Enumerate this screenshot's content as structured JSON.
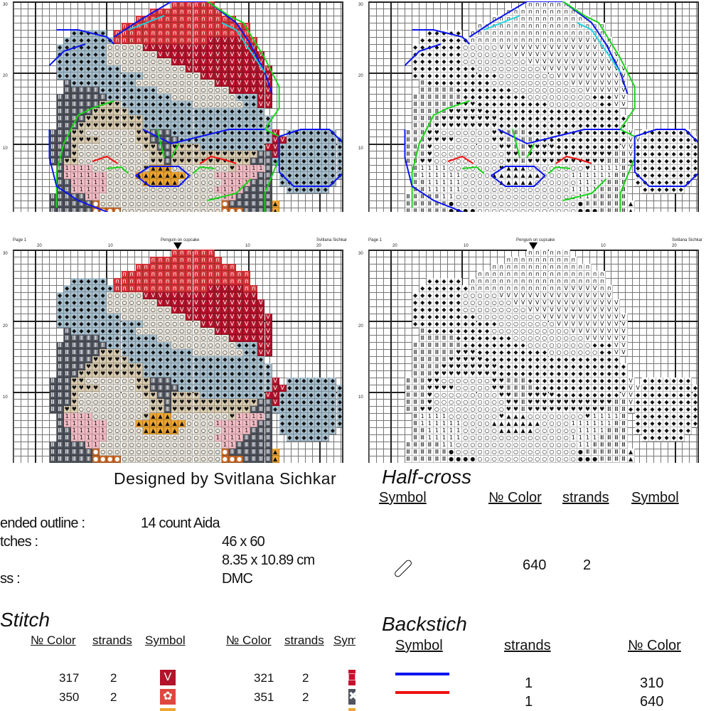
{
  "pages": [
    {
      "page_label": "Page 1",
      "title": "Penguin on cupcake",
      "author": "Svitlana Sichkar"
    },
    {
      "page_label": "Page 1",
      "title": "Penguin on cupcake",
      "author": "Svitlana Sichkar"
    }
  ],
  "col_ticks": [
    "20",
    "10",
    "10",
    "20"
  ],
  "row_ticks": [
    "30",
    "20",
    "10"
  ],
  "colors": {
    "r": "#d8343a",
    "R": "#b3132b",
    "L": "#a9c1cf",
    "W": "#ece8df",
    "D": "#50545e",
    "T": "#d9cbb0",
    "P": "#f2bcc4",
    "O": "#eda531",
    "B": "#c86a28"
  },
  "glyphs": {
    "r": "п",
    "R": "V",
    "L": "◆",
    "W": "○",
    "D": "Ⅲ",
    "T": "♥",
    "P": "1",
    "O": "▲",
    "B": "●"
  },
  "pattern": [
    [
      [
        22,
        27,
        "r"
      ]
    ],
    [
      [
        19,
        28,
        "r"
      ]
    ],
    [
      [
        17,
        30,
        "r"
      ]
    ],
    [
      [
        15,
        32,
        "r"
      ]
    ],
    [
      [
        8,
        12,
        "L"
      ],
      [
        14,
        32,
        "r"
      ]
    ],
    [
      [
        7,
        13,
        "L"
      ],
      [
        14,
        26,
        "r"
      ],
      [
        27,
        31,
        "R"
      ],
      [
        32,
        33,
        "r"
      ]
    ],
    [
      [
        6,
        12,
        "L"
      ],
      [
        13,
        17,
        "W"
      ],
      [
        18,
        33,
        "R"
      ]
    ],
    [
      [
        6,
        12,
        "L"
      ],
      [
        13,
        19,
        "W"
      ],
      [
        20,
        34,
        "R"
      ]
    ],
    [
      [
        6,
        12,
        "L"
      ],
      [
        13,
        21,
        "W"
      ],
      [
        22,
        34,
        "R"
      ]
    ],
    [
      [
        6,
        14,
        "L"
      ],
      [
        15,
        23,
        "W"
      ],
      [
        24,
        35,
        "R"
      ]
    ],
    [
      [
        6,
        17,
        "L"
      ],
      [
        18,
        25,
        "W"
      ],
      [
        26,
        35,
        "R"
      ]
    ],
    [
      [
        7,
        7,
        "D"
      ],
      [
        8,
        16,
        "L"
      ],
      [
        17,
        27,
        "W"
      ],
      [
        28,
        35,
        "R"
      ]
    ],
    [
      [
        7,
        11,
        "D"
      ],
      [
        12,
        19,
        "L"
      ],
      [
        20,
        29,
        "W"
      ],
      [
        30,
        35,
        "R"
      ]
    ],
    [
      [
        6,
        12,
        "D"
      ],
      [
        13,
        21,
        "L"
      ],
      [
        22,
        30,
        "W"
      ],
      [
        31,
        33,
        "L"
      ],
      [
        34,
        35,
        "R"
      ]
    ],
    [
      [
        6,
        11,
        "D"
      ],
      [
        12,
        14,
        "T"
      ],
      [
        15,
        24,
        "L"
      ],
      [
        25,
        31,
        "W"
      ],
      [
        32,
        33,
        "L"
      ],
      [
        34,
        35,
        "R"
      ]
    ],
    [
      [
        6,
        10,
        "D"
      ],
      [
        11,
        15,
        "T"
      ],
      [
        16,
        34,
        "L"
      ]
    ],
    [
      [
        6,
        9,
        "D"
      ],
      [
        10,
        17,
        "T"
      ],
      [
        18,
        35,
        "L"
      ]
    ],
    [
      [
        6,
        8,
        "D"
      ],
      [
        9,
        17,
        "T"
      ],
      [
        18,
        35,
        "L"
      ]
    ],
    [
      [
        5,
        7,
        "D"
      ],
      [
        8,
        9,
        "T"
      ],
      [
        10,
        16,
        "W"
      ],
      [
        17,
        18,
        "T"
      ],
      [
        19,
        21,
        "D"
      ],
      [
        22,
        35,
        "L"
      ],
      [
        36,
        36,
        "R"
      ],
      [
        38,
        44,
        "L"
      ]
    ],
    [
      [
        5,
        7,
        "D"
      ],
      [
        8,
        11,
        "T"
      ],
      [
        12,
        16,
        "W"
      ],
      [
        17,
        18,
        "T"
      ],
      [
        19,
        22,
        "D"
      ],
      [
        23,
        35,
        "L"
      ],
      [
        36,
        37,
        "R"
      ],
      [
        38,
        45,
        "L"
      ]
    ],
    [
      [
        5,
        7,
        "D"
      ],
      [
        8,
        8,
        "T"
      ],
      [
        9,
        17,
        "W"
      ],
      [
        18,
        19,
        "T"
      ],
      [
        20,
        21,
        "D"
      ],
      [
        22,
        25,
        "T"
      ],
      [
        26,
        34,
        "L"
      ],
      [
        35,
        36,
        "R"
      ],
      [
        37,
        46,
        "L"
      ]
    ],
    [
      [
        5,
        7,
        "D"
      ],
      [
        8,
        8,
        "T"
      ],
      [
        9,
        18,
        "W"
      ],
      [
        19,
        20,
        "T"
      ],
      [
        21,
        21,
        "D"
      ],
      [
        22,
        33,
        "T"
      ],
      [
        34,
        35,
        "D"
      ],
      [
        36,
        36,
        "R"
      ],
      [
        37,
        46,
        "L"
      ]
    ],
    [
      [
        5,
        6,
        "D"
      ],
      [
        7,
        8,
        "T"
      ],
      [
        9,
        18,
        "W"
      ],
      [
        19,
        20,
        "T"
      ],
      [
        21,
        21,
        "D"
      ],
      [
        22,
        32,
        "T"
      ],
      [
        33,
        35,
        "D"
      ],
      [
        36,
        46,
        "L"
      ]
    ],
    [
      [
        6,
        6,
        "D"
      ],
      [
        7,
        10,
        "P"
      ],
      [
        11,
        17,
        "W"
      ],
      [
        18,
        18,
        "T"
      ],
      [
        19,
        21,
        "O"
      ],
      [
        22,
        29,
        "W"
      ],
      [
        30,
        30,
        "T"
      ],
      [
        31,
        34,
        "P"
      ],
      [
        35,
        35,
        "D"
      ],
      [
        37,
        45,
        "L"
      ]
    ],
    [
      [
        6,
        6,
        "D"
      ],
      [
        7,
        12,
        "P"
      ],
      [
        13,
        16,
        "W"
      ],
      [
        17,
        23,
        "O"
      ],
      [
        24,
        27,
        "W"
      ],
      [
        28,
        33,
        "P"
      ],
      [
        34,
        35,
        "D"
      ],
      [
        37,
        45,
        "L"
      ]
    ],
    [
      [
        6,
        7,
        "D"
      ],
      [
        8,
        12,
        "P"
      ],
      [
        13,
        17,
        "W"
      ],
      [
        18,
        22,
        "O"
      ],
      [
        23,
        28,
        "W"
      ],
      [
        29,
        32,
        "P"
      ],
      [
        33,
        35,
        "D"
      ],
      [
        37,
        44,
        "L"
      ]
    ],
    [
      [
        6,
        7,
        "D"
      ],
      [
        8,
        12,
        "P"
      ],
      [
        13,
        27,
        "W"
      ],
      [
        28,
        31,
        "P"
      ],
      [
        32,
        35,
        "D"
      ],
      [
        38,
        43,
        "L"
      ]
    ],
    [
      [
        5,
        9,
        "D"
      ],
      [
        10,
        11,
        "P"
      ],
      [
        12,
        28,
        "W"
      ],
      [
        29,
        30,
        "P"
      ],
      [
        31,
        35,
        "D"
      ]
    ],
    [
      [
        5,
        10,
        "D"
      ],
      [
        11,
        11,
        "B"
      ],
      [
        12,
        28,
        "W"
      ],
      [
        29,
        29,
        "B"
      ],
      [
        30,
        35,
        "D"
      ],
      [
        36,
        36,
        "O"
      ]
    ],
    [
      [
        5,
        10,
        "D"
      ],
      [
        11,
        14,
        "B"
      ],
      [
        15,
        28,
        "W"
      ],
      [
        29,
        31,
        "B"
      ],
      [
        32,
        35,
        "D"
      ],
      [
        36,
        36,
        "O"
      ]
    ]
  ],
  "info": {
    "designer": "Designed by Svitlana Sichkar",
    "rows": [
      {
        "label": "ended outline :",
        "value": "14 count Aida"
      },
      {
        "label": "tches :",
        "value": "46 x 60"
      },
      {
        "label": "",
        "value": "8.35 x 10.89 cm"
      },
      {
        "label": "ss :",
        "value": "DMC"
      }
    ]
  },
  "cross_stitch": {
    "title": "Stitch",
    "headers": [
      "№ Color",
      "strands",
      "Symbol",
      "№ Color",
      "strands",
      "Sym"
    ],
    "left": [
      {
        "color": "317",
        "strands": "2",
        "symbol": "V",
        "bg": "#b3132b"
      },
      {
        "color": "350",
        "strands": "2",
        "symbol": "✿",
        "bg": "#e0473e"
      }
    ],
    "right": [
      {
        "color": "321",
        "strands": "2",
        "symbol": "□",
        "bg": "#c8102e"
      },
      {
        "color": "351",
        "strands": "2",
        "symbol": "✖",
        "bg": "#50545e"
      }
    ]
  },
  "half_cross": {
    "title": "Half-cross",
    "headers": [
      "Symbol",
      "№ Color",
      "strands",
      "Symbol"
    ],
    "rows": [
      {
        "symbol": "⬯",
        "color": "640",
        "strands": "2"
      }
    ]
  },
  "backstitch": {
    "title": "Backstich",
    "headers": [
      "Symbol",
      "strands",
      "№ Color"
    ],
    "rows": [
      {
        "line_color": "#0a14f0",
        "strands": "1",
        "color": "310"
      },
      {
        "line_color": "#f01010",
        "strands": "1",
        "color": "640"
      }
    ]
  }
}
